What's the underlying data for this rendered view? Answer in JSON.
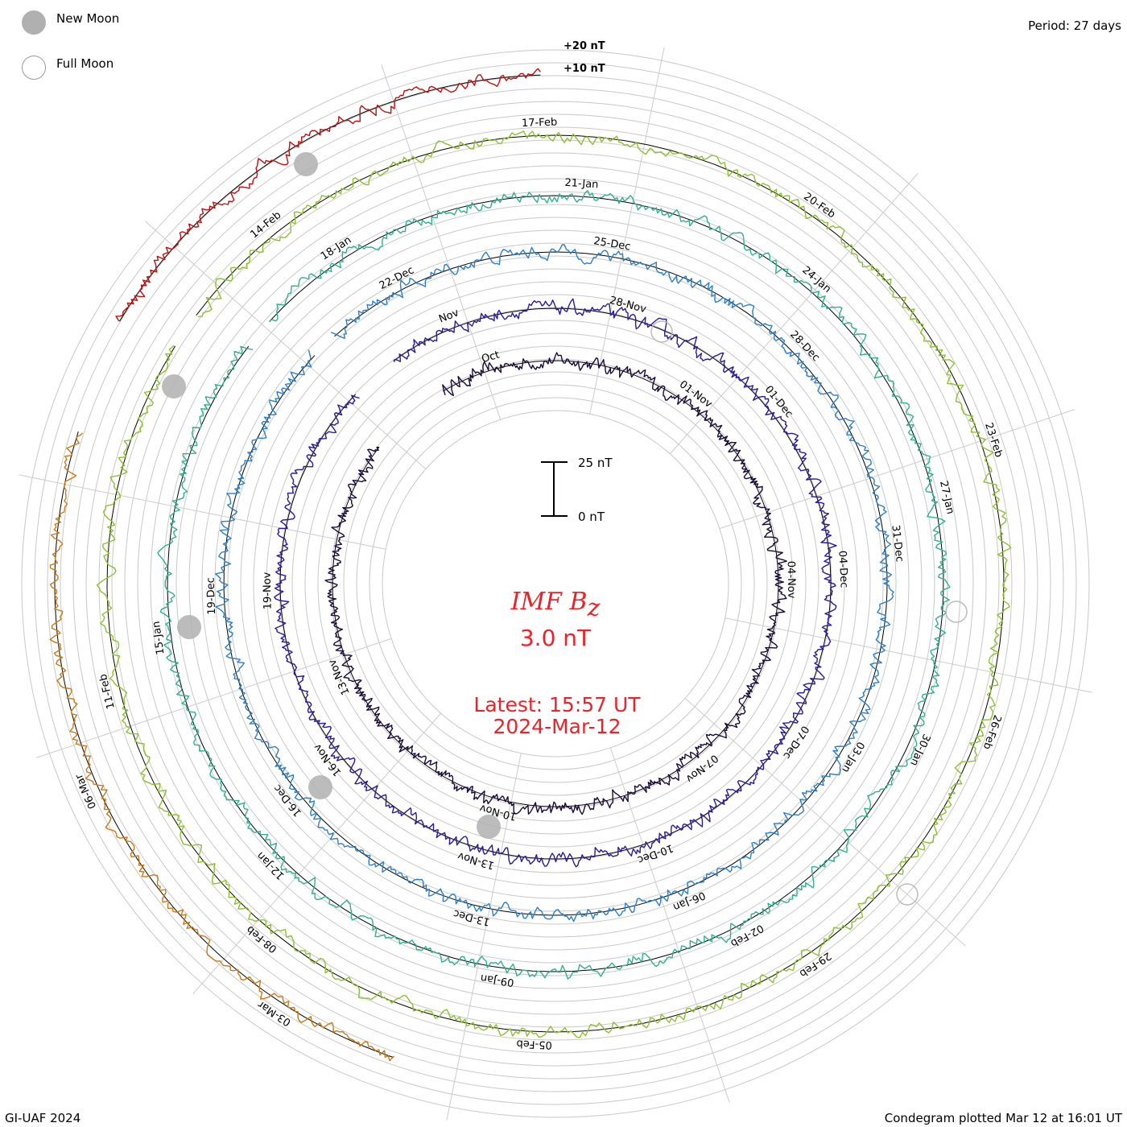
{
  "legend": {
    "new_moon": "New Moon",
    "full_moon": "Full Moon"
  },
  "period_label": "Period: 27 days",
  "footer_left": "GI-UAF 2024",
  "footer_right": "Condegram plotted Mar 12 at 16:01 UT",
  "chart_data": {
    "type": "line",
    "title": "IMF B",
    "title_subscript": "z",
    "current_value": "3.0 nT",
    "latest_time": "Latest: 15:57 UT",
    "latest_date": "2024-Mar-12",
    "period_days": 27,
    "scale_bar": {
      "top_label": "25 nT",
      "bottom_label": "0 nT",
      "nT": 25
    },
    "ring_labels": [
      "+20 nT",
      "+10 nT"
    ],
    "grid": true,
    "series": [
      {
        "color": "#1a0a3c",
        "dates": [
          "Oct",
          "01-Nov",
          "04-Nov",
          "07-Nov",
          "10-Nov",
          "13-Nov"
        ]
      },
      {
        "color": "#2a1a9a",
        "dates": [
          "Nov",
          "28-Nov",
          "01-Dec",
          "04-Dec",
          "07-Dec",
          "10-Dec",
          "13-Nov",
          "16-Nov",
          "19-Nov"
        ]
      },
      {
        "color": "#2e7fc4",
        "dates": [
          "22-Dec",
          "25-Dec",
          "28-Dec",
          "31-Dec",
          "03-Jan",
          "06-Jan",
          "13-Dec",
          "16-Dec",
          "19-Dec"
        ]
      },
      {
        "color": "#30b090",
        "dates": [
          "18-Jan",
          "21-Jan",
          "24-Jan",
          "27-Jan",
          "30-Jan",
          "02-Feb",
          "09-Jan",
          "12-Jan",
          "15-Jan"
        ]
      },
      {
        "color": "#8cc030",
        "dates": [
          "14-Feb",
          "17-Feb",
          "20-Feb",
          "23-Feb",
          "26-Feb",
          "29-Feb",
          "05-Feb",
          "08-Feb",
          "11-Feb"
        ]
      },
      {
        "color": "#c87a1a",
        "dates": [
          "03-Mar",
          "06-Mar"
        ]
      },
      {
        "color": "#c01010",
        "dates": []
      }
    ]
  }
}
